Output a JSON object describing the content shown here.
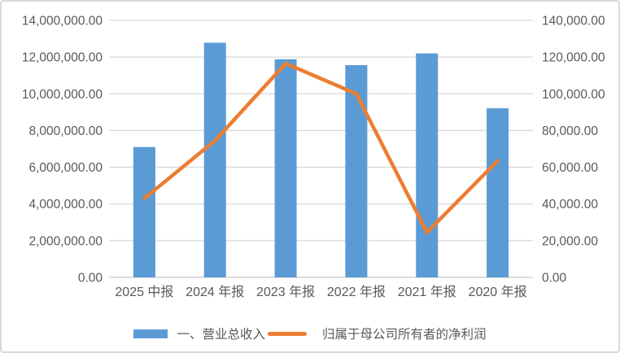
{
  "chart_data": {
    "type": "combo_bar_line",
    "title": "",
    "categories": [
      "2025 中报",
      "2024 年报",
      "2023 年报",
      "2022 年报",
      "2021 年报",
      "2020 年报"
    ],
    "series": [
      {
        "name": "一、营业总收入",
        "type": "bar",
        "axis": "left",
        "color": "#5B9BD5",
        "values": [
          7100000,
          12780000,
          11880000,
          11560000,
          12200000,
          9210000
        ]
      },
      {
        "name": "归属于母公司所有者的净利润",
        "type": "line",
        "axis": "right",
        "color": "#ED7D31",
        "values": [
          43000,
          74500,
          116500,
          100000,
          24500,
          63500
        ]
      }
    ],
    "left_axis": {
      "min": 0,
      "max": 14000000,
      "step": 2000000,
      "tick_labels": [
        "0.00",
        "2,000,000.00",
        "4,000,000.00",
        "6,000,000.00",
        "8,000,000.00",
        "10,000,000.00",
        "12,000,000.00",
        "14,000,000.00"
      ]
    },
    "right_axis": {
      "min": 0,
      "max": 140000,
      "step": 20000,
      "tick_labels": [
        "0.00",
        "20,000.00",
        "40,000.00",
        "60,000.00",
        "80,000.00",
        "100,000.00",
        "120,000.00",
        "140,000.00"
      ]
    },
    "grid": true,
    "legend_position": "bottom",
    "colors": {
      "grid_line": "#D9D9D9",
      "axis_text": "#595959",
      "background": "#FFFFFF",
      "border": "#D9D9D9"
    }
  }
}
